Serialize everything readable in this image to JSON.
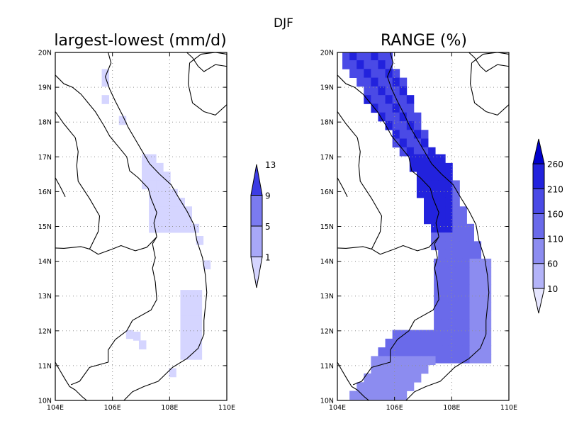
{
  "figure": {
    "suptitle": "DJF"
  },
  "panels": [
    {
      "title": "largest-lowest (mm/d)",
      "lat_labels": [
        "20N",
        "19N",
        "18N",
        "17N",
        "16N",
        "15N",
        "14N",
        "13N",
        "12N",
        "11N",
        "10N"
      ],
      "lon_labels": [
        "104E",
        "106E",
        "108E",
        "110E"
      ],
      "colorbar": {
        "levels": [
          "1",
          "5",
          "9",
          "13"
        ],
        "colors": [
          "#d5d5ff",
          "#a8a8f8",
          "#7b7bf0",
          "#3c3ce4"
        ],
        "extend": "both"
      }
    },
    {
      "title": "RANGE (%)",
      "lat_labels": [
        "20N",
        "19N",
        "18N",
        "17N",
        "16N",
        "15N",
        "14N",
        "13N",
        "12N",
        "11N",
        "10N"
      ],
      "lon_labels": [
        "104E",
        "106E",
        "108E",
        "110E"
      ],
      "colorbar": {
        "levels": [
          "10",
          "60",
          "110",
          "160",
          "210",
          "260"
        ],
        "colors": [
          "#e6e6ff",
          "#b3b3f8",
          "#8c8cf0",
          "#6a6aea",
          "#4a4ae6",
          "#2222dd",
          "#0000cc"
        ],
        "extend": "both"
      }
    }
  ],
  "colors": {
    "coast": "#000000",
    "grid": "#909090",
    "frame": "#000000"
  }
}
